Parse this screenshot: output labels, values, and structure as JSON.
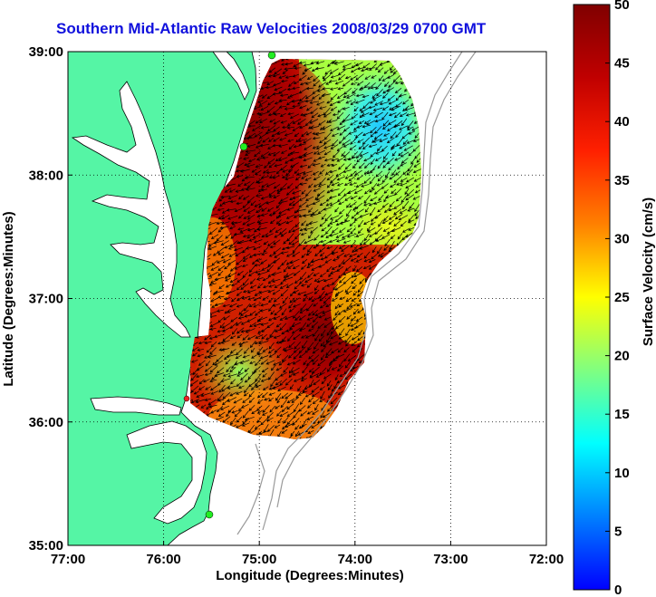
{
  "title": "Southern Mid-Atlantic Raw Velocities 2008/03/29 0700 GMT",
  "map": {
    "xlabel": "Longitude (Degrees:Minutes)",
    "ylabel": "Latitude (Degrees:Minutes)",
    "x_ticks": [
      "77:00",
      "76:00",
      "75:00",
      "74:00",
      "73:00",
      "72:00"
    ],
    "y_ticks": [
      "39:00",
      "38:00",
      "37:00",
      "36:00",
      "35:00"
    ],
    "lon_range": [
      -77,
      -72
    ],
    "lat_range": [
      35,
      39
    ],
    "land_color": "#55f5a5",
    "arrow_color": "#000000",
    "grid": "dotted"
  },
  "colorbar": {
    "label": "Surface Velocity (cm/s)",
    "ticks": [
      "50",
      "45",
      "40",
      "35",
      "30",
      "25",
      "20",
      "15",
      "10",
      "5",
      "0"
    ],
    "range": [
      0,
      50
    ]
  },
  "stations": [
    {
      "name": "station-north-icon"
    },
    {
      "name": "station-mid-icon"
    },
    {
      "name": "station-south-icon"
    },
    {
      "name": "station-capehatteras-icon"
    }
  ]
}
